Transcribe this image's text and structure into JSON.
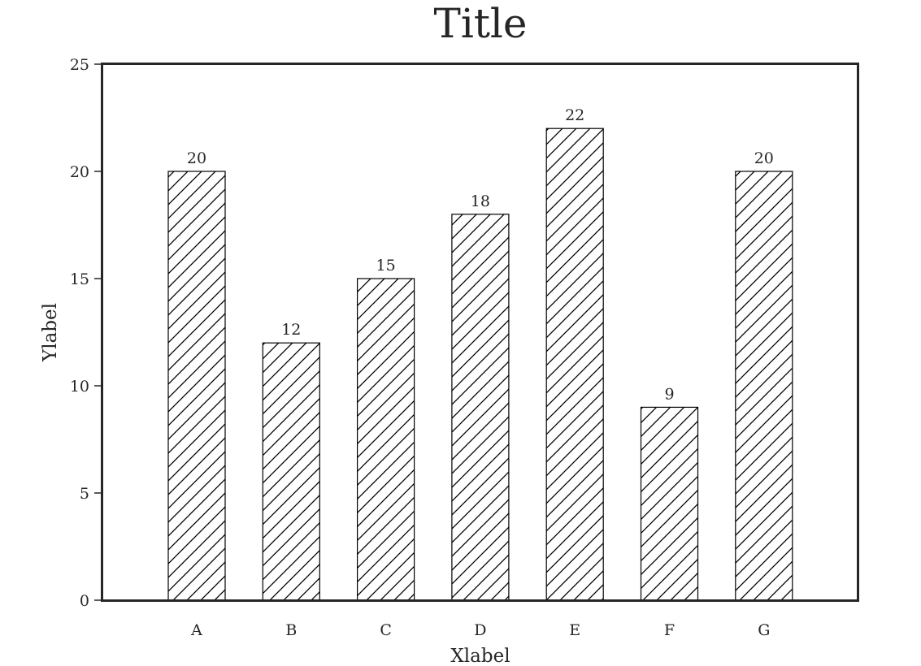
{
  "chart_data": {
    "type": "bar",
    "title": "Title",
    "xlabel": "Xlabel",
    "ylabel": "Ylabel",
    "categories": [
      "A",
      "B",
      "C",
      "D",
      "E",
      "F",
      "G"
    ],
    "values": [
      20,
      12,
      15,
      18,
      22,
      9,
      20
    ],
    "data_labels": [
      "20",
      "12",
      "15",
      "18",
      "22",
      "9",
      "20"
    ],
    "ylim": [
      0,
      25
    ],
    "yticks": [
      0,
      5,
      10,
      15,
      20,
      25
    ],
    "ytick_labels": [
      "0",
      "5",
      "10",
      "15",
      "20",
      "25"
    ],
    "grid": false,
    "legend": "none",
    "bar_fill": "#ffffff",
    "bar_hatch": "diagonal",
    "bar_edge_color": "#000000",
    "frame_color": "#262626",
    "text_color": "#262626"
  }
}
